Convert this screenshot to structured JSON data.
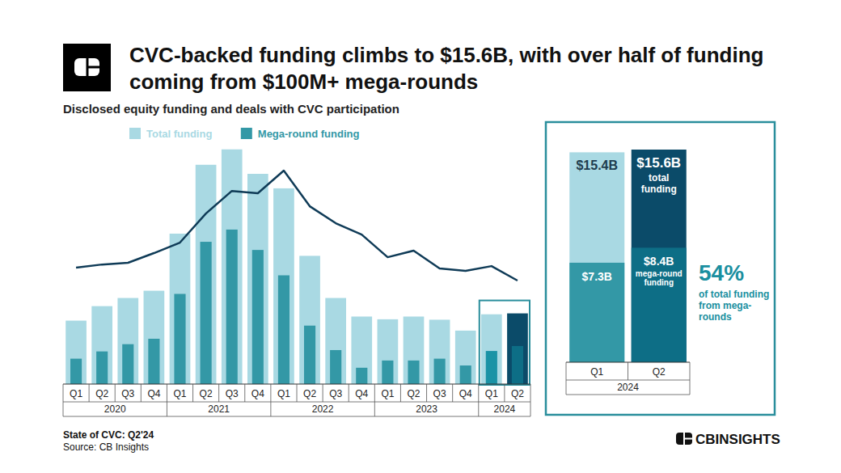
{
  "chart_data": [
    {
      "type": "bar",
      "title": "CVC-backed funding climbs to $15.6B, with over half of funding coming from $100M+ mega-rounds",
      "subtitle": "Disclosed equity funding and deals with CVC participation",
      "categories": [
        "Q1",
        "Q2",
        "Q3",
        "Q4",
        "Q1",
        "Q2",
        "Q3",
        "Q4",
        "Q1",
        "Q2",
        "Q3",
        "Q4",
        "Q1",
        "Q2",
        "Q3",
        "Q4",
        "Q1",
        "Q2"
      ],
      "category_groups": [
        "2020",
        "2020",
        "2020",
        "2020",
        "2021",
        "2021",
        "2021",
        "2021",
        "2022",
        "2022",
        "2022",
        "2022",
        "2023",
        "2023",
        "2023",
        "2023",
        "2024",
        "2024"
      ],
      "series": [
        {
          "name": "Total funding",
          "color": "#a9d9e3",
          "colors": [
            "#a9d9e3",
            "#a9d9e3",
            "#a9d9e3",
            "#a9d9e3",
            "#a9d9e3",
            "#a9d9e3",
            "#a9d9e3",
            "#a9d9e3",
            "#a9d9e3",
            "#a9d9e3",
            "#a9d9e3",
            "#a9d9e3",
            "#a9d9e3",
            "#a9d9e3",
            "#a9d9e3",
            "#a9d9e3",
            "#a9d9e3",
            "#0b4b69"
          ],
          "values": [
            14.0,
            17.2,
            19.0,
            20.6,
            33.2,
            48.4,
            51.8,
            46.4,
            43.2,
            28.3,
            19.0,
            14.9,
            14.3,
            14.9,
            14.2,
            11.8,
            15.4,
            15.6
          ]
        },
        {
          "name": "Mega-round funding",
          "color": "#3398a6",
          "colors": [
            "#3398a6",
            "#3398a6",
            "#3398a6",
            "#3398a6",
            "#3398a6",
            "#3398a6",
            "#3398a6",
            "#3398a6",
            "#3398a6",
            "#3398a6",
            "#3398a6",
            "#3398a6",
            "#3398a6",
            "#3398a6",
            "#3398a6",
            "#3398a6",
            "#1a93a6",
            "#0d6e86"
          ],
          "values": [
            5.6,
            7.2,
            8.8,
            10.0,
            19.9,
            31.4,
            34.1,
            29.6,
            24.0,
            12.9,
            7.5,
            3.6,
            5.2,
            5.2,
            5.6,
            4.1,
            7.3,
            8.4
          ]
        },
        {
          "type": "line",
          "color": "#0f3b57",
          "axis": "y2",
          "values": [
            797,
            819,
            831,
            897,
            969,
            1168,
            1323,
            1307,
            1462,
            1218,
            1102,
            1024,
            869,
            914,
            792,
            775,
            808,
            709
          ]
        }
      ],
      "ylim": [
        0,
        58
      ],
      "y2lim": [
        0,
        1800
      ],
      "tick_labels": "x",
      "grid": false,
      "legend": "top-left"
    },
    {
      "type": "bar",
      "categories": [
        "Q1",
        "Q2"
      ],
      "category_groups": [
        "2024",
        "2024"
      ],
      "series": [
        {
          "colors": [
            "#a9d9e3",
            "#0b4b69"
          ],
          "values": [
            15.4,
            15.6
          ],
          "value_labels": [
            "$15.4B",
            "$15.6B"
          ]
        },
        {
          "colors": [
            "#3398a6",
            "#0d6e86"
          ],
          "values": [
            7.3,
            8.4
          ],
          "value_labels": [
            "$7.3B",
            "$8.4B"
          ]
        }
      ],
      "ylim": [
        0,
        15.6
      ],
      "tick_labels": "x",
      "data_labels": true,
      "annotations": [
        "total funding",
        "mega-round funding",
        "54%",
        "of total funding from mega-rounds"
      ]
    }
  ],
  "footer": {
    "lines": [
      "State of CVC: Q2'24",
      "Source: CB Insights"
    ],
    "brand": "CBINSIGHTS"
  }
}
